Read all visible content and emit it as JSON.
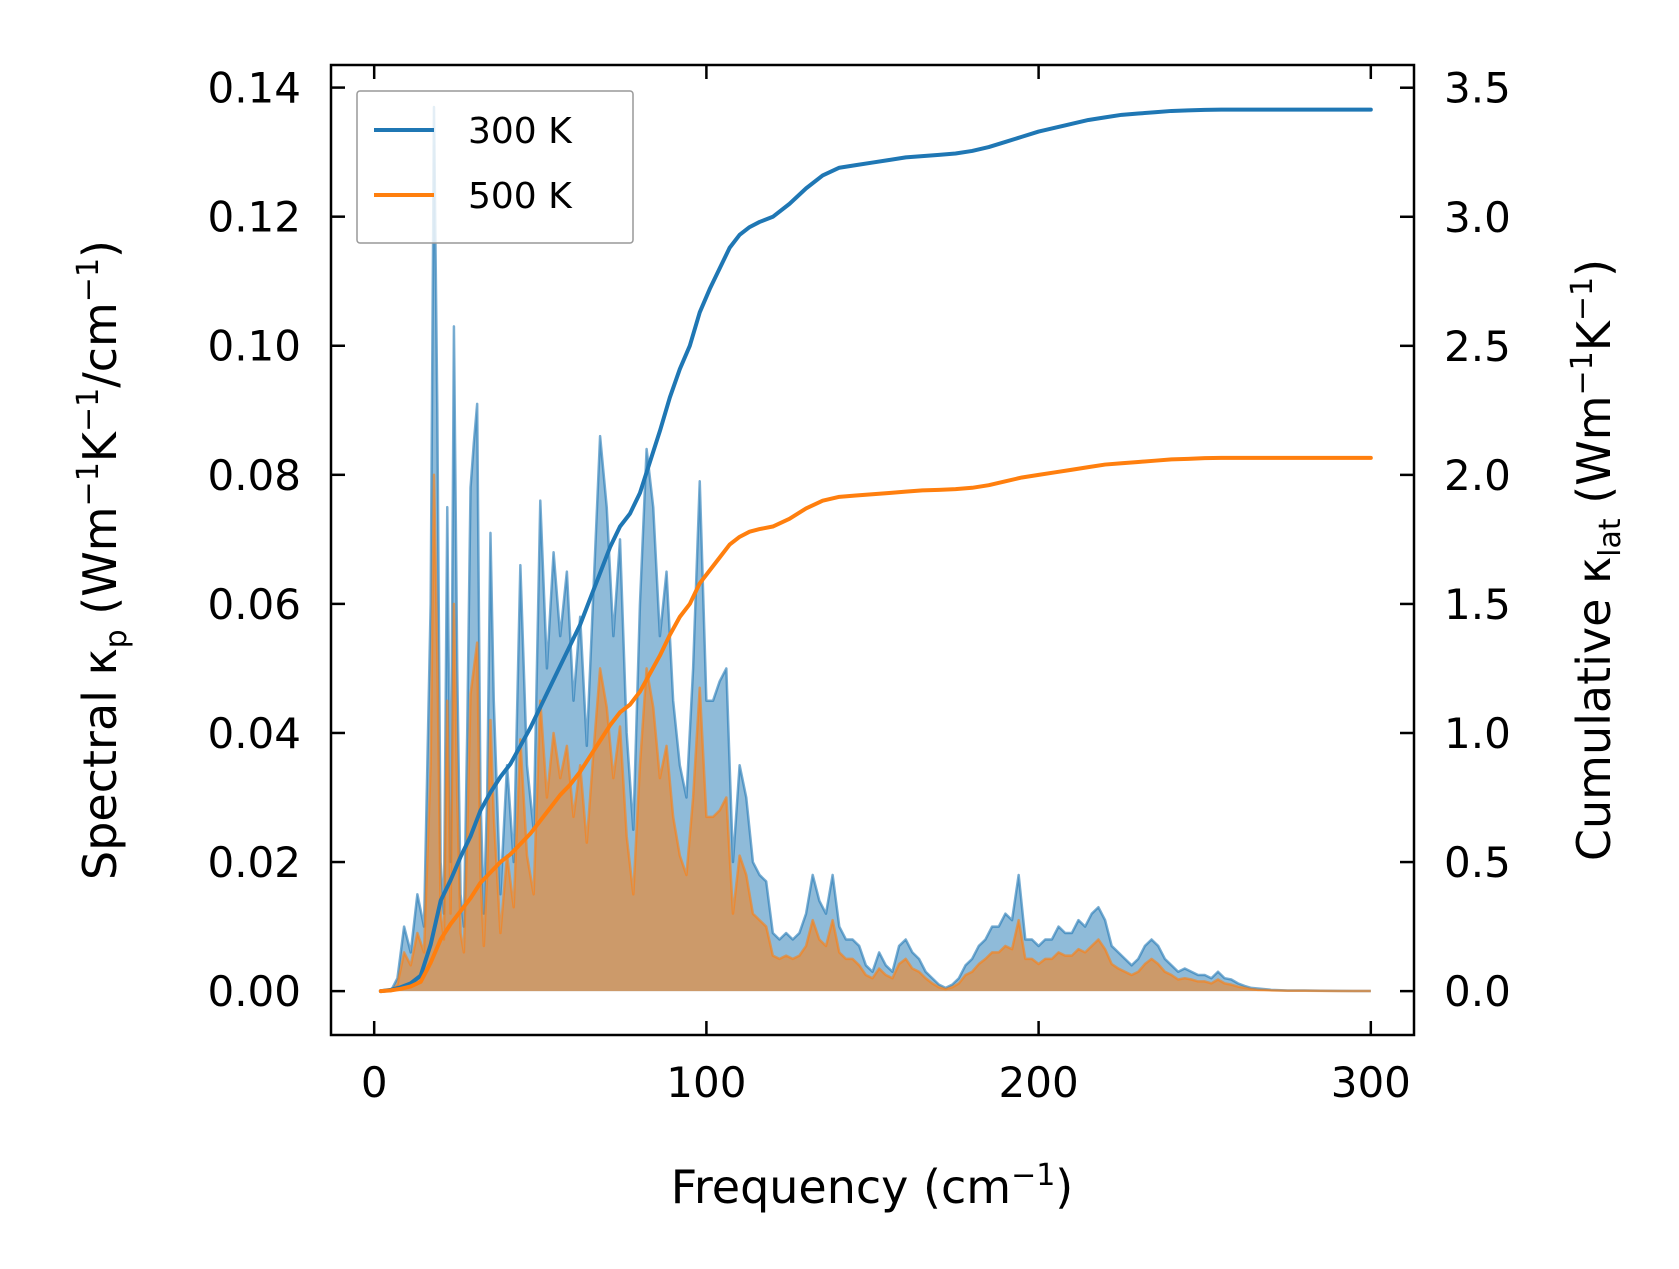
{
  "chart_data": {
    "type": "line",
    "x_axis": {
      "label": "Frequency (cm",
      "label_sup": "−1",
      "label_end": ")",
      "range": [
        -13,
        313
      ],
      "ticks": [
        0,
        100,
        200,
        300
      ],
      "tick_labels": [
        "0",
        "100",
        "200",
        "300"
      ]
    },
    "y_left": {
      "label": "Spectral κ",
      "label_sub": "p",
      "label_units": " (Wm",
      "label_sup1": "−1",
      "label_mid": "K",
      "label_sup2": "−1",
      "label_mid2": "/cm",
      "label_sup3": "−1",
      "label_end": ")",
      "range": [
        -0.0068,
        0.1435
      ],
      "ticks": [
        0,
        0.02,
        0.04,
        0.06,
        0.08,
        0.1,
        0.12,
        0.14
      ],
      "tick_labels": [
        "0.00",
        "0.02",
        "0.04",
        "0.06",
        "0.08",
        "0.10",
        "0.12",
        "0.14"
      ]
    },
    "y_right": {
      "label": "Cumulative κ",
      "label_sub": "lat",
      "label_units": " (Wm",
      "label_sup1": "−1",
      "label_mid": "K",
      "label_sup2": "−1",
      "label_end": ")",
      "range": [
        -0.17,
        3.588
      ],
      "ticks": [
        0,
        0.5,
        1.0,
        1.5,
        2.0,
        2.5,
        3.0,
        3.5
      ],
      "tick_labels": [
        "0.0",
        "0.5",
        "1.0",
        "1.5",
        "2.0",
        "2.5",
        "3.0",
        "3.5"
      ]
    },
    "legend": {
      "position": "top-left",
      "entries": [
        {
          "label": "300 K",
          "color": "#1f77b4"
        },
        {
          "label": "500 K",
          "color": "#ff7f0e"
        }
      ]
    },
    "x": [
      2,
      5,
      7,
      9,
      11,
      13,
      15,
      17,
      18,
      19,
      20,
      21,
      22,
      23,
      24,
      25,
      26,
      27,
      28,
      29,
      30,
      31,
      32,
      33,
      34,
      35,
      36,
      37,
      38,
      40,
      42,
      44,
      46,
      48,
      50,
      52,
      54,
      56,
      58,
      60,
      62,
      64,
      66,
      68,
      70,
      72,
      74,
      76,
      78,
      80,
      82,
      84,
      86,
      88,
      90,
      92,
      94,
      96,
      98,
      100,
      102,
      104,
      106,
      108,
      110,
      112,
      114,
      116,
      118,
      120,
      122,
      124,
      126,
      128,
      130,
      132,
      134,
      136,
      138,
      140,
      142,
      144,
      146,
      148,
      150,
      152,
      154,
      156,
      158,
      160,
      162,
      164,
      166,
      168,
      170,
      172,
      174,
      176,
      178,
      180,
      182,
      184,
      186,
      188,
      190,
      192,
      194,
      196,
      198,
      200,
      202,
      204,
      206,
      208,
      210,
      212,
      214,
      216,
      218,
      220,
      222,
      224,
      226,
      228,
      230,
      232,
      234,
      236,
      238,
      240,
      242,
      244,
      246,
      248,
      250,
      252,
      254,
      256,
      258,
      260,
      262,
      264,
      266,
      268,
      270,
      275,
      280,
      285,
      290,
      295,
      300
    ],
    "series": [
      {
        "name": "300 K spectral",
        "axis": "left",
        "color": "#1f77b4",
        "values": [
          0,
          0,
          0.002,
          0.01,
          0.006,
          0.015,
          0.01,
          0.06,
          0.137,
          0.09,
          0.02,
          0.012,
          0.075,
          0.02,
          0.103,
          0.05,
          0.015,
          0.01,
          0.04,
          0.078,
          0.085,
          0.091,
          0.03,
          0.012,
          0.03,
          0.071,
          0.045,
          0.03,
          0.015,
          0.035,
          0.02,
          0.066,
          0.035,
          0.025,
          0.076,
          0.05,
          0.068,
          0.055,
          0.065,
          0.045,
          0.058,
          0.038,
          0.062,
          0.086,
          0.075,
          0.055,
          0.07,
          0.04,
          0.025,
          0.06,
          0.084,
          0.075,
          0.055,
          0.065,
          0.045,
          0.035,
          0.03,
          0.05,
          0.079,
          0.045,
          0.045,
          0.048,
          0.05,
          0.02,
          0.035,
          0.03,
          0.02,
          0.018,
          0.017,
          0.009,
          0.008,
          0.009,
          0.008,
          0.009,
          0.012,
          0.018,
          0.014,
          0.012,
          0.018,
          0.01,
          0.008,
          0.008,
          0.007,
          0.004,
          0.003,
          0.006,
          0.004,
          0.003,
          0.007,
          0.008,
          0.006,
          0.005,
          0.003,
          0.002,
          0.001,
          0.0005,
          0.001,
          0.002,
          0.004,
          0.005,
          0.007,
          0.008,
          0.01,
          0.01,
          0.012,
          0.011,
          0.018,
          0.008,
          0.008,
          0.007,
          0.008,
          0.008,
          0.01,
          0.009,
          0.009,
          0.011,
          0.01,
          0.012,
          0.013,
          0.011,
          0.007,
          0.006,
          0.005,
          0.004,
          0.005,
          0.007,
          0.008,
          0.007,
          0.005,
          0.004,
          0.003,
          0.0035,
          0.003,
          0.0025,
          0.0025,
          0.002,
          0.003,
          0.002,
          0.0018,
          0.0012,
          0.0008,
          0.0005,
          0.0004,
          0.0003,
          0.0002,
          0.0001,
          0.0001,
          5e-05,
          3e-05,
          2e-05,
          1e-05
        ]
      },
      {
        "name": "500 K spectral",
        "axis": "left",
        "color": "#ff7f0e",
        "values": [
          0,
          0,
          0.001,
          0.006,
          0.004,
          0.009,
          0.006,
          0.035,
          0.08,
          0.052,
          0.012,
          0.008,
          0.045,
          0.012,
          0.06,
          0.03,
          0.009,
          0.006,
          0.024,
          0.046,
          0.05,
          0.054,
          0.018,
          0.007,
          0.018,
          0.042,
          0.027,
          0.018,
          0.009,
          0.021,
          0.013,
          0.039,
          0.021,
          0.015,
          0.045,
          0.03,
          0.04,
          0.033,
          0.038,
          0.027,
          0.035,
          0.023,
          0.037,
          0.05,
          0.044,
          0.033,
          0.041,
          0.024,
          0.015,
          0.035,
          0.05,
          0.044,
          0.033,
          0.038,
          0.027,
          0.021,
          0.018,
          0.03,
          0.047,
          0.027,
          0.027,
          0.028,
          0.03,
          0.012,
          0.021,
          0.018,
          0.012,
          0.011,
          0.01,
          0.0055,
          0.005,
          0.0055,
          0.005,
          0.0055,
          0.007,
          0.011,
          0.008,
          0.007,
          0.011,
          0.006,
          0.005,
          0.005,
          0.004,
          0.0025,
          0.002,
          0.0035,
          0.0025,
          0.002,
          0.0042,
          0.005,
          0.0035,
          0.003,
          0.002,
          0.0012,
          0.0006,
          0.0003,
          0.0006,
          0.0012,
          0.0025,
          0.003,
          0.0042,
          0.005,
          0.006,
          0.006,
          0.007,
          0.0065,
          0.011,
          0.005,
          0.005,
          0.0042,
          0.005,
          0.005,
          0.006,
          0.0055,
          0.0055,
          0.0065,
          0.006,
          0.007,
          0.008,
          0.0065,
          0.0042,
          0.0035,
          0.003,
          0.0025,
          0.003,
          0.0042,
          0.005,
          0.0042,
          0.003,
          0.0025,
          0.0018,
          0.002,
          0.0018,
          0.0015,
          0.0015,
          0.0012,
          0.0018,
          0.0012,
          0.001,
          0.0007,
          0.0005,
          0.0003,
          0.0002,
          0.00018,
          0.00012,
          6e-05,
          6e-05,
          3e-05,
          2e-05,
          1e-05,
          1e-05
        ]
      }
    ],
    "cumulative_x": [
      2,
      5,
      8,
      11,
      14,
      17,
      20,
      23,
      26,
      29,
      32,
      35,
      38,
      41,
      44,
      47,
      50,
      53,
      56,
      59,
      62,
      65,
      68,
      71,
      74,
      77,
      80,
      83,
      86,
      89,
      92,
      95,
      98,
      101,
      104,
      107,
      110,
      113,
      116,
      120,
      125,
      130,
      135,
      140,
      145,
      150,
      155,
      160,
      165,
      170,
      175,
      180,
      185,
      190,
      195,
      200,
      205,
      210,
      215,
      220,
      225,
      230,
      235,
      240,
      245,
      250,
      255,
      260,
      265,
      270,
      275,
      280,
      285,
      290,
      295,
      300
    ],
    "cumulative_series": [
      {
        "name": "300 K cumulative",
        "axis": "right",
        "color": "#1f77b4",
        "values": [
          0,
          0.005,
          0.015,
          0.03,
          0.06,
          0.18,
          0.35,
          0.43,
          0.52,
          0.6,
          0.7,
          0.77,
          0.83,
          0.88,
          0.95,
          1.02,
          1.1,
          1.18,
          1.26,
          1.34,
          1.42,
          1.52,
          1.62,
          1.72,
          1.8,
          1.85,
          1.93,
          2.05,
          2.17,
          2.3,
          2.41,
          2.5,
          2.63,
          2.72,
          2.8,
          2.88,
          2.93,
          2.96,
          2.98,
          3.0,
          3.05,
          3.11,
          3.16,
          3.19,
          3.2,
          3.21,
          3.22,
          3.23,
          3.235,
          3.24,
          3.245,
          3.255,
          3.27,
          3.29,
          3.31,
          3.33,
          3.345,
          3.36,
          3.375,
          3.385,
          3.395,
          3.4,
          3.405,
          3.41,
          3.412,
          3.414,
          3.415,
          3.415,
          3.415,
          3.415,
          3.415,
          3.415,
          3.415,
          3.415,
          3.415,
          3.415
        ]
      },
      {
        "name": "500 K cumulative",
        "axis": "right",
        "color": "#ff7f0e",
        "values": [
          0,
          0.003,
          0.009,
          0.018,
          0.036,
          0.11,
          0.2,
          0.26,
          0.31,
          0.36,
          0.42,
          0.46,
          0.5,
          0.53,
          0.57,
          0.61,
          0.66,
          0.71,
          0.76,
          0.8,
          0.85,
          0.91,
          0.97,
          1.03,
          1.08,
          1.11,
          1.16,
          1.23,
          1.3,
          1.38,
          1.45,
          1.5,
          1.58,
          1.63,
          1.68,
          1.73,
          1.76,
          1.78,
          1.79,
          1.8,
          1.83,
          1.87,
          1.9,
          1.915,
          1.92,
          1.925,
          1.93,
          1.935,
          1.94,
          1.942,
          1.945,
          1.95,
          1.96,
          1.975,
          1.99,
          2.0,
          2.01,
          2.02,
          2.03,
          2.04,
          2.045,
          2.05,
          2.055,
          2.06,
          2.062,
          2.065,
          2.066,
          2.066,
          2.066,
          2.066,
          2.066,
          2.066,
          2.066,
          2.066,
          2.066,
          2.066
        ]
      }
    ]
  }
}
